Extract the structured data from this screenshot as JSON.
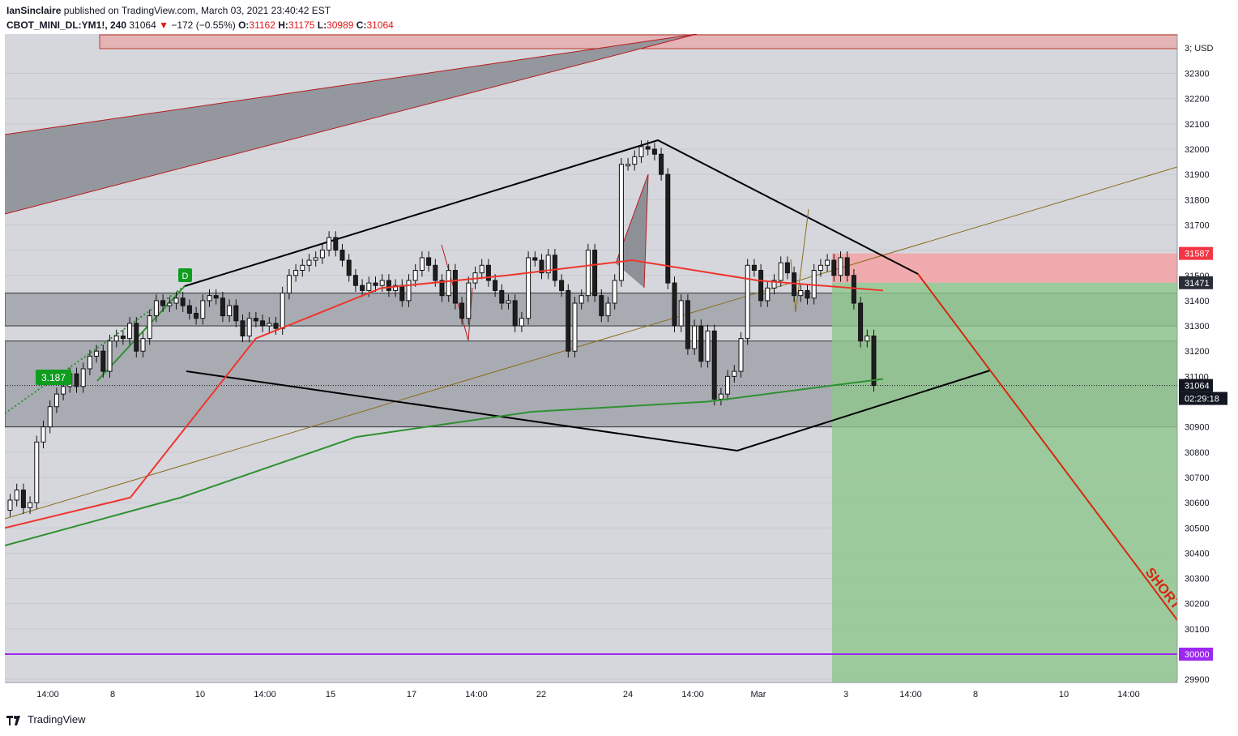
{
  "header": {
    "author": "IanSinclaire",
    "published_text": "published on TradingView.com, March 03, 2021 23:40:42 EST",
    "symbol": "CBOT_MINI_DL:YM1!, 240",
    "last": "31064",
    "change": "−172 (−0.55%)",
    "o_label": "O:",
    "o_value": "31162",
    "h_label": "H:",
    "h_value": "31175",
    "l_label": "L:",
    "l_value": "30989",
    "c_label": "C:",
    "c_value": "31064"
  },
  "footer": {
    "brand": "TradingView"
  },
  "colors": {
    "up_candle": "#ffffff",
    "down_candle": "#1e1e1e",
    "ema_fast": "#f0352c",
    "ema_slow": "#2f9131",
    "stop_zone": "#f3a2a4",
    "target_zone": "#8fc78c",
    "purple_line": "#9c27f0",
    "short_arrow": "#d42a0c"
  },
  "chart_data": {
    "type": "candlestick",
    "price_axis": {
      "currency": "USD",
      "ticks": [
        "32300",
        "32200",
        "32100",
        "32000",
        "31900",
        "31800",
        "31700",
        "31600",
        "31500",
        "31400",
        "31300",
        "31200",
        "31100",
        "31000",
        "30900",
        "30800",
        "30700",
        "30600",
        "30500",
        "30400",
        "30300",
        "30200",
        "30100",
        "30000",
        "29900"
      ],
      "top_label": "3;"
    },
    "time_axis": {
      "ticks": [
        "14:00",
        "8",
        "10",
        "14:00",
        "15",
        "17",
        "14:00",
        "22",
        "24",
        "14:00",
        "Mar",
        "3",
        "14:00",
        "8",
        "10",
        "14:00"
      ]
    },
    "price_labels": [
      {
        "value": "31587",
        "color": "#f23645"
      },
      {
        "value": "31471",
        "color": "#2a2e39"
      },
      {
        "value": "31064",
        "color": "#131722"
      },
      {
        "value": "30000",
        "color": "#9c27f0"
      }
    ],
    "countdown": "02:29:18",
    "annotations": {
      "pattern_point": "D",
      "ratio": "3.187",
      "short_label": "SHORT"
    },
    "closes": [
      30610,
      30650,
      30580,
      30600,
      30840,
      30900,
      30980,
      31030,
      31060,
      31110,
      31060,
      31130,
      31180,
      31200,
      31120,
      31240,
      31260,
      31250,
      31310,
      31200,
      31250,
      31340,
      31400,
      31380,
      31390,
      31410,
      31380,
      31350,
      31330,
      31400,
      31420,
      31410,
      31340,
      31380,
      31320,
      31260,
      31330,
      31320,
      31300,
      31310,
      31290,
      31430,
      31500,
      31520,
      31540,
      31560,
      31570,
      31600,
      31650,
      31600,
      31560,
      31500,
      31460,
      31440,
      31470,
      31460,
      31480,
      31440,
      31460,
      31400,
      31480,
      31520,
      31570,
      31540,
      31480,
      31420,
      31520,
      31390,
      31330,
      31470,
      31510,
      31540,
      31480,
      31440,
      31390,
      31400,
      31300,
      31330,
      31570,
      31560,
      31510,
      31580,
      31480,
      31440,
      31200,
      31390,
      31420,
      31600,
      31420,
      31340,
      31390,
      31480,
      31940,
      31940,
      31970,
      32010,
      32000,
      31980,
      31900,
      31470,
      31300,
      31400,
      31210,
      31300,
      31160,
      31280,
      31010,
      31030,
      31100,
      31120,
      31250,
      31540,
      31520,
      31400,
      31450,
      31480,
      31550,
      31510,
      31420,
      31440,
      31410,
      31520,
      31540,
      31560,
      31500,
      31570,
      31500,
      31390,
      31240,
      31260,
      31064
    ],
    "ema_fast_anchor_prices": [
      30500,
      30620,
      31250,
      31450,
      31500,
      31560,
      31480,
      31440
    ],
    "ema_slow_anchor_prices": [
      30430,
      30620,
      30860,
      30960,
      31000,
      31090
    ]
  }
}
